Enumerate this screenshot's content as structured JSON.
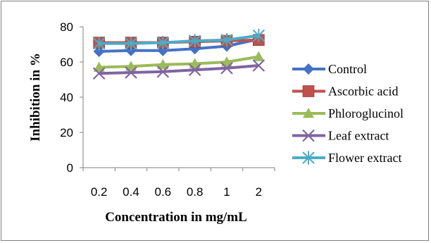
{
  "chart_data": {
    "type": "line",
    "title": "",
    "xlabel": "Concentration in mg/mL",
    "ylabel": "Inhibition  in %",
    "categories": [
      "0.2",
      "0.4",
      "0.6",
      "0.8",
      "1",
      "2"
    ],
    "ylim": [
      0,
      80
    ],
    "yticks": [
      0,
      20,
      40,
      60,
      80
    ],
    "grid": false,
    "legend_position": "right",
    "series": [
      {
        "name": "Control",
        "values": [
          66,
          66.5,
          66.5,
          67.5,
          69,
          73
        ],
        "color": "#4472C4",
        "marker": "diamond"
      },
      {
        "name": "Ascorbic acid",
        "values": [
          71,
          71,
          71,
          71.5,
          72,
          72.5
        ],
        "color": "#C0504D",
        "marker": "square"
      },
      {
        "name": "Phloroglucinol",
        "values": [
          57,
          57.5,
          58.5,
          59,
          60,
          63
        ],
        "color": "#9BBB59",
        "marker": "triangle"
      },
      {
        "name": "Leaf extract",
        "values": [
          53.5,
          54,
          54.5,
          55.5,
          56.5,
          58
        ],
        "color": "#8064A2",
        "marker": "x"
      },
      {
        "name": "Flower extract",
        "values": [
          70.5,
          70.5,
          71,
          72,
          72.5,
          75
        ],
        "color": "#4BACC6",
        "marker": "star"
      }
    ]
  }
}
